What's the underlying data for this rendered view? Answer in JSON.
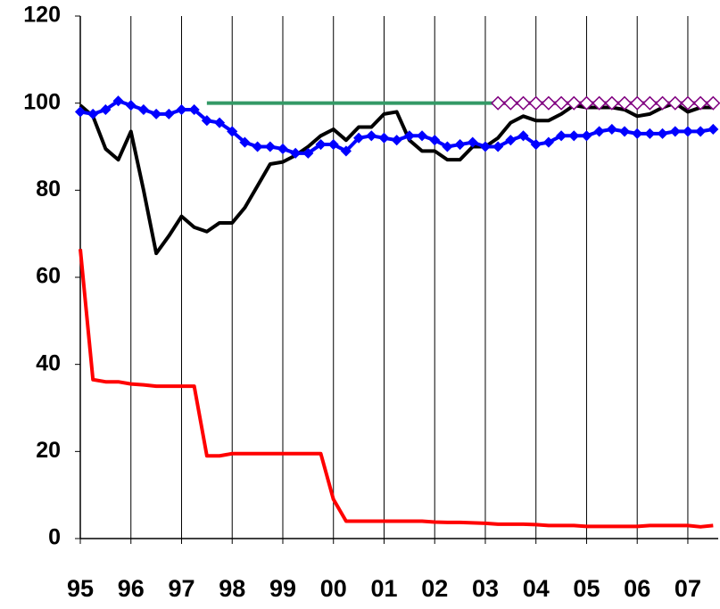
{
  "chart_data": {
    "type": "line",
    "x": [
      1995,
      1995.25,
      1995.5,
      1995.75,
      1996,
      1996.25,
      1996.5,
      1996.75,
      1997,
      1997.25,
      1997.5,
      1997.75,
      1998,
      1998.25,
      1998.5,
      1998.75,
      1999,
      1999.25,
      1999.5,
      1999.75,
      2000,
      2000.25,
      2000.5,
      2000.75,
      2001,
      2001.25,
      2001.5,
      2001.75,
      2002,
      2002.25,
      2002.5,
      2002.75,
      2003,
      2003.25,
      2003.5,
      2003.75,
      2004,
      2004.25,
      2004.5,
      2004.75,
      2005,
      2005.25,
      2005.5,
      2005.75,
      2006,
      2006.25,
      2006.5,
      2006.75,
      2007,
      2007.25,
      2007.5
    ],
    "series": [
      {
        "color": "#ff0000",
        "marker": "none",
        "values": [
          66.5,
          36.5,
          36,
          36,
          35.5,
          35.3,
          35,
          35,
          35,
          35,
          19,
          19,
          19.5,
          19.5,
          19.5,
          19.5,
          19.5,
          19.5,
          19.5,
          19.5,
          9,
          4,
          4,
          4,
          4,
          4,
          4,
          4,
          3.8,
          3.7,
          3.7,
          3.6,
          3.5,
          3.3,
          3.3,
          3.3,
          3.2,
          3,
          3,
          3,
          2.8,
          2.8,
          2.8,
          2.8,
          2.8,
          3,
          3,
          3,
          3,
          2.7,
          3
        ]
      },
      {
        "color": "#339966",
        "marker": "none",
        "values": [
          null,
          null,
          null,
          null,
          null,
          null,
          null,
          null,
          null,
          null,
          100,
          100,
          100,
          100,
          100,
          100,
          100,
          100,
          100,
          100,
          100,
          100,
          100,
          100,
          100,
          100,
          100,
          100,
          100,
          100,
          100,
          100,
          100,
          100,
          null,
          null,
          null,
          null,
          null,
          null,
          null,
          null,
          null,
          null,
          null,
          null,
          null,
          null,
          null,
          null,
          null
        ]
      },
      {
        "color": "#000000",
        "marker": "none",
        "values": [
          99.5,
          97,
          89.5,
          87,
          93.5,
          80,
          65.5,
          69.5,
          74,
          71.5,
          70.5,
          72.5,
          72.5,
          76,
          81,
          86,
          86.5,
          88,
          90,
          92.5,
          94,
          91.5,
          94.5,
          94.5,
          97.5,
          98,
          91.5,
          89,
          89,
          87,
          87,
          90,
          90,
          92,
          95.5,
          97,
          96,
          96,
          97.5,
          99.5,
          99,
          99,
          99,
          98.5,
          97,
          97.5,
          99,
          100,
          98,
          99,
          99
        ]
      },
      {
        "color": "#0000ff",
        "marker": "filled-diamond",
        "values": [
          98,
          97.5,
          98.5,
          100.5,
          99.5,
          98.5,
          97.5,
          97.5,
          98.5,
          98.5,
          96,
          95.5,
          93.5,
          91,
          90,
          90,
          89.5,
          88.5,
          88.5,
          90.5,
          90.5,
          89,
          92,
          92.5,
          92,
          91.5,
          92.5,
          92.5,
          91.5,
          90,
          90.5,
          91,
          90,
          90,
          91.5,
          92.5,
          90.5,
          91,
          92.5,
          92.5,
          92.5,
          93.5,
          94,
          93.5,
          93,
          93,
          93,
          93.5,
          93.5,
          93.5,
          94
        ]
      },
      {
        "color": "#800080",
        "marker": "hollow-diamond",
        "values": [
          null,
          null,
          null,
          null,
          null,
          null,
          null,
          null,
          null,
          null,
          null,
          null,
          null,
          null,
          null,
          null,
          null,
          null,
          null,
          null,
          null,
          null,
          null,
          null,
          null,
          null,
          null,
          null,
          null,
          null,
          null,
          null,
          null,
          100,
          100,
          100,
          100,
          100,
          100,
          100,
          100,
          100,
          100,
          100,
          100,
          100,
          100,
          100,
          100,
          100,
          100
        ]
      }
    ],
    "xlim": [
      1995,
      2007.6
    ],
    "xticks": [
      {
        "value": 1995,
        "label": "95"
      },
      {
        "value": 1996,
        "label": "96"
      },
      {
        "value": 1997,
        "label": "97"
      },
      {
        "value": 1998,
        "label": "98"
      },
      {
        "value": 1999,
        "label": "99"
      },
      {
        "value": 2000,
        "label": "00"
      },
      {
        "value": 2001,
        "label": "01"
      },
      {
        "value": 2002,
        "label": "02"
      },
      {
        "value": 2003,
        "label": "03"
      },
      {
        "value": 2004,
        "label": "04"
      },
      {
        "value": 2005,
        "label": "05"
      },
      {
        "value": 2006,
        "label": "06"
      },
      {
        "value": 2007,
        "label": "07"
      }
    ],
    "ylim": [
      0,
      120
    ],
    "yticks": [
      0,
      20,
      40,
      60,
      80,
      100,
      120
    ],
    "xgrid": true,
    "ygrid": false
  }
}
